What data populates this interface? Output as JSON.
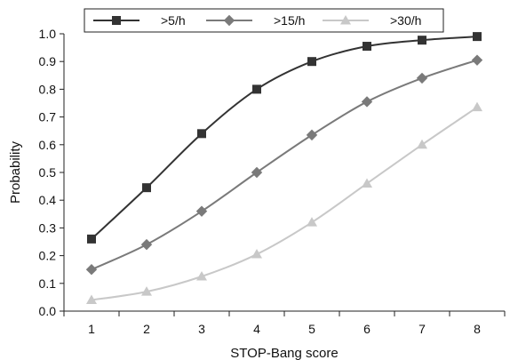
{
  "chart_data": {
    "type": "line",
    "xlabel": "STOP-Bang score",
    "ylabel": "Probability",
    "x": [
      1,
      2,
      3,
      4,
      5,
      6,
      7,
      8
    ],
    "xlim": [
      0.5,
      8.5
    ],
    "ylim": [
      0.0,
      1.0
    ],
    "y_ticks": [
      "0.0",
      "0.1",
      "0.2",
      "0.3",
      "0.4",
      "0.5",
      "0.6",
      "0.7",
      "0.8",
      "0.9",
      "1.0"
    ],
    "grid": false,
    "legend_position": "top",
    "series": [
      {
        "name": ">5/h",
        "marker": "square",
        "color": "#333333",
        "values": [
          0.26,
          0.445,
          0.64,
          0.8,
          0.9,
          0.955,
          0.977,
          0.99
        ]
      },
      {
        "name": ">15/h",
        "marker": "diamond",
        "color": "#7a7a7a",
        "values": [
          0.15,
          0.24,
          0.36,
          0.5,
          0.635,
          0.755,
          0.84,
          0.905
        ]
      },
      {
        "name": ">30/h",
        "marker": "triangle",
        "color": "#c8c8c8",
        "values": [
          0.04,
          0.07,
          0.125,
          0.205,
          0.32,
          0.46,
          0.6,
          0.735
        ]
      }
    ]
  }
}
